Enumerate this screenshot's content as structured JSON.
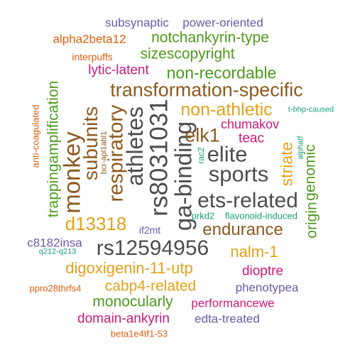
{
  "palette": {
    "gray": "#4d4d4d",
    "brown": "#8c5a1e",
    "gold": "#e3a21a",
    "green": "#4e9a1e",
    "magenta": "#cc1a7a",
    "purple": "#6a5aa8",
    "orange": "#d95f0e",
    "teal": "#1b9e77"
  },
  "words": [
    {
      "text": "subsynaptic",
      "color": "purple"
    },
    {
      "text": "power-oriented",
      "color": "purple"
    },
    {
      "text": "alpha2beta12",
      "color": "orange"
    },
    {
      "text": "notchankyrin-type",
      "color": "green"
    },
    {
      "text": "interpuffs",
      "color": "orange"
    },
    {
      "text": "sizescopyright",
      "color": "green"
    },
    {
      "text": "lytic-latent",
      "color": "magenta"
    },
    {
      "text": "non-recordable",
      "color": "green"
    },
    {
      "text": "transformation-specific",
      "color": "brown"
    },
    {
      "text": "trappingamplification",
      "color": "green"
    },
    {
      "text": "anti-coagulated",
      "color": "orange"
    },
    {
      "text": "bcr-apl1abl1",
      "color": "brown"
    },
    {
      "text": "monkey",
      "color": "brown"
    },
    {
      "text": "subunits",
      "color": "brown"
    },
    {
      "text": "respiratory",
      "color": "brown"
    },
    {
      "text": "athletes",
      "color": "gray"
    },
    {
      "text": "rs8031031",
      "color": "gray"
    },
    {
      "text": "ga-binding",
      "color": "gray"
    },
    {
      "text": "non-athletic",
      "color": "gold"
    },
    {
      "text": "t-bhp-caused",
      "color": "teal"
    },
    {
      "text": "chumakov",
      "color": "magenta"
    },
    {
      "text": "elk1",
      "color": "brown"
    },
    {
      "text": "teac",
      "color": "magenta"
    },
    {
      "text": "elite",
      "color": "gray"
    },
    {
      "text": "rac2",
      "color": "teal"
    },
    {
      "text": "alphatf",
      "color": "teal"
    },
    {
      "text": "striate",
      "color": "gold"
    },
    {
      "text": "genomic",
      "color": "green"
    },
    {
      "text": "sports",
      "color": "gray"
    },
    {
      "text": "ets-related",
      "color": "gray"
    },
    {
      "text": "origin",
      "color": "green"
    },
    {
      "text": "d13318",
      "color": "gold"
    },
    {
      "text": "prkd2",
      "color": "teal"
    },
    {
      "text": "flavonoid-induced",
      "color": "teal"
    },
    {
      "text": "endurance",
      "color": "brown"
    },
    {
      "text": "if2mt",
      "color": "purple"
    },
    {
      "text": "c8182insa",
      "color": "purple"
    },
    {
      "text": "rs12594956",
      "color": "gray"
    },
    {
      "text": "q212-q213",
      "color": "teal"
    },
    {
      "text": "nalm-1",
      "color": "gold"
    },
    {
      "text": "digoxigenin-11-utp",
      "color": "gold"
    },
    {
      "text": "dioptre",
      "color": "magenta"
    },
    {
      "text": "ppro28thrfs4",
      "color": "orange"
    },
    {
      "text": "cabp4-related",
      "color": "gold"
    },
    {
      "text": "phenotypea",
      "color": "purple"
    },
    {
      "text": "monocularly",
      "color": "green"
    },
    {
      "text": "performancewe",
      "color": "magenta"
    },
    {
      "text": "domain-ankyrin",
      "color": "magenta"
    },
    {
      "text": "edta-treated",
      "color": "purple"
    },
    {
      "text": "beta1e4tf1-53",
      "color": "orange"
    }
  ]
}
